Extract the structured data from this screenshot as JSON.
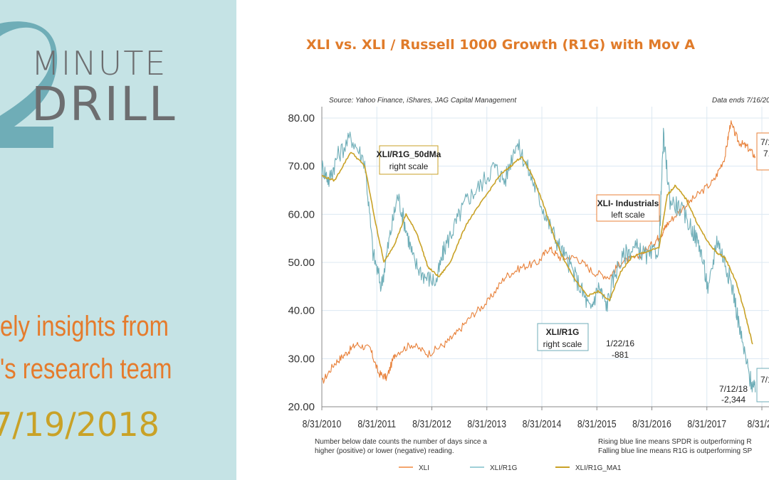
{
  "banner": {
    "big_number": "2",
    "line1": "MINUTE",
    "line2": "DRILL",
    "tagline1": "ely insights from",
    "tagline2": "'s research team",
    "date": "7/19/2018",
    "colors": {
      "bg": "#c5e3e5",
      "teal": "#6fadb7",
      "gray": "#6d6e70",
      "orange": "#e57b2c",
      "gold": "#c9a227"
    }
  },
  "chart_data": {
    "type": "line",
    "title": "XLI vs. XLI  / Russell 1000 Growth (R1G) with Mov A",
    "source": "Source: Yahoo Finance, iShares, JAG Capital Management",
    "data_ends": "Data ends 7/16/20",
    "ylim": [
      20,
      80
    ],
    "y_ticks": [
      "80.00",
      "70.00",
      "60.00",
      "50.00",
      "40.00",
      "30.00",
      "20.00"
    ],
    "x_ticks": [
      "8/31/2010",
      "8/31/2011",
      "8/31/2012",
      "8/31/2013",
      "8/31/2014",
      "8/31/2015",
      "8/31/2016",
      "8/31/2017",
      "8/31/20"
    ],
    "xlim": [
      2010.67,
      2018.75
    ],
    "note_left": [
      "Number below date counts the number of days since a",
      "higher (positive) or lower (negative) reading."
    ],
    "note_right": [
      "Rising blue line means SPDR is outperforming R",
      "Falling blue line means R1G is outperforming SP"
    ],
    "legend": [
      {
        "name": "XLI",
        "color": "#f4a66e"
      },
      {
        "name": "XLI/R1G",
        "color": "#9fd0d8"
      },
      {
        "name": "XLI/R1G_MA1",
        "color": "#c9a227"
      }
    ],
    "series": [
      {
        "name": "XLI",
        "axis": "left",
        "color": "#e8813a",
        "x": [
          2010.67,
          2010.9,
          2011.1,
          2011.3,
          2011.55,
          2011.7,
          2011.85,
          2012.0,
          2012.3,
          2012.6,
          2012.9,
          2013.1,
          2013.4,
          2013.7,
          2014.0,
          2014.3,
          2014.6,
          2014.8,
          2015.0,
          2015.3,
          2015.6,
          2015.9,
          2016.1,
          2016.4,
          2016.7,
          2016.85,
          2016.95,
          2017.2,
          2017.5,
          2017.8,
          2018.0,
          2018.1,
          2018.25,
          2018.4,
          2018.55
        ],
        "y": [
          25,
          29,
          31,
          33,
          32,
          27,
          26,
          31,
          33,
          31,
          33,
          35,
          39,
          42,
          47,
          49,
          50,
          53,
          51,
          51,
          48,
          47,
          50,
          51,
          54,
          56,
          58,
          61,
          64,
          67,
          72,
          79,
          75,
          74,
          72
        ]
      },
      {
        "name": "XLI/R1G",
        "axis": "right",
        "color": "#6faeb8",
        "x": [
          2010.67,
          2010.8,
          2010.95,
          2011.2,
          2011.45,
          2011.6,
          2011.75,
          2011.9,
          2012.05,
          2012.2,
          2012.35,
          2012.55,
          2012.75,
          2012.9,
          2013.1,
          2013.3,
          2013.55,
          2013.8,
          2014.0,
          2014.2,
          2014.4,
          2014.6,
          2014.8,
          2015.0,
          2015.2,
          2015.4,
          2015.55,
          2015.7,
          2015.85,
          2016.0,
          2016.2,
          2016.4,
          2016.6,
          2016.8,
          2016.88,
          2017.0,
          2017.2,
          2017.4,
          2017.55,
          2017.7,
          2017.85,
          2018.0,
          2018.15,
          2018.3,
          2018.45,
          2018.55
        ],
        "y": [
          70,
          67,
          72,
          76,
          71,
          52,
          45,
          55,
          64,
          57,
          50,
          47,
          46,
          53,
          58,
          63,
          66,
          70,
          67,
          75,
          70,
          64,
          58,
          53,
          49,
          44,
          40,
          45,
          41,
          48,
          52,
          53,
          51,
          53,
          76,
          63,
          61,
          57,
          53,
          44,
          55,
          50,
          44,
          34,
          26,
          23
        ]
      },
      {
        "name": "XLI/R1G_MA1",
        "axis": "right",
        "color": "#c9a227",
        "x": [
          2010.67,
          2010.9,
          2011.2,
          2011.45,
          2011.65,
          2011.8,
          2012.0,
          2012.2,
          2012.4,
          2012.6,
          2012.8,
          2013.0,
          2013.3,
          2013.6,
          2013.9,
          2014.1,
          2014.3,
          2014.5,
          2014.7,
          2014.9,
          2015.1,
          2015.3,
          2015.5,
          2015.7,
          2015.9,
          2016.1,
          2016.3,
          2016.5,
          2016.8,
          2016.95,
          2017.1,
          2017.3,
          2017.5,
          2017.7,
          2017.85,
          2018.0,
          2018.2,
          2018.35,
          2018.5
        ],
        "y": [
          68,
          67,
          73,
          70,
          58,
          50,
          54,
          60,
          56,
          49,
          47,
          50,
          58,
          63,
          68,
          70,
          72,
          68,
          62,
          55,
          50,
          46,
          43,
          44,
          42,
          48,
          51,
          52,
          53,
          64,
          66,
          63,
          58,
          54,
          52,
          51,
          46,
          40,
          33
        ]
      }
    ],
    "annotations": [
      {
        "title": "XLI/R1G_50dMa",
        "sub": "right scale"
      },
      {
        "title": "XLI- Industrials",
        "sub": "left scale"
      },
      {
        "title": "XLI/R1G",
        "sub": "right scale"
      },
      {
        "date": "1/22/16",
        "count": "-881"
      },
      {
        "date": "7/12/18",
        "count": "-2,344"
      },
      {
        "cut1": "7/1",
        "cut2": "7."
      },
      {
        "cut1": "7/1"
      }
    ]
  }
}
